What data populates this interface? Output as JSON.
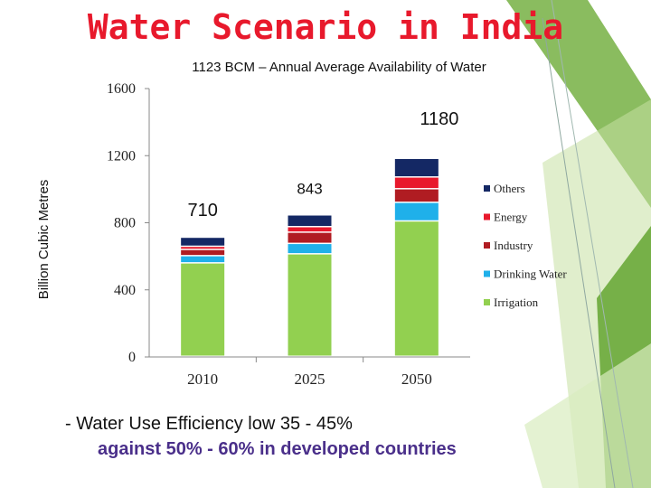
{
  "slide": {
    "title": "Water Scenario in India",
    "bullet_line1": "- Water Use Efficiency low  35 - 45%",
    "bullet_line2": "against 50% - 60% in developed countries"
  },
  "chart_data": {
    "type": "bar",
    "stacked": true,
    "title": "1123 BCM – Annual Average Availability of Water",
    "ylabel": "Billion Cubic Metres",
    "xlabel": "",
    "ylim": [
      0,
      1600
    ],
    "y_ticks": [
      0,
      400,
      800,
      1200,
      1600
    ],
    "categories": [
      "2010",
      "2025",
      "2050"
    ],
    "totals": [
      710,
      843,
      1180
    ],
    "total_labels": [
      "710",
      "843",
      "1180"
    ],
    "series": [
      {
        "name": "Irrigation",
        "color": "#92d050",
        "values": [
          557,
          611,
          807
        ]
      },
      {
        "name": "Drinking Water",
        "color": "#1fb0ea",
        "values": [
          43,
          62,
          111
        ]
      },
      {
        "name": "Industry",
        "color": "#b01c22",
        "values": [
          37,
          67,
          81
        ]
      },
      {
        "name": "Energy",
        "color": "#e8192c",
        "values": [
          19,
          33,
          70
        ]
      },
      {
        "name": "Others",
        "color": "#142864",
        "values": [
          54,
          70,
          111
        ]
      }
    ],
    "legend_position": "right",
    "legend_order": [
      "Others",
      "Energy",
      "Industry",
      "Drinking Water",
      "Irrigation"
    ],
    "grid": false
  }
}
